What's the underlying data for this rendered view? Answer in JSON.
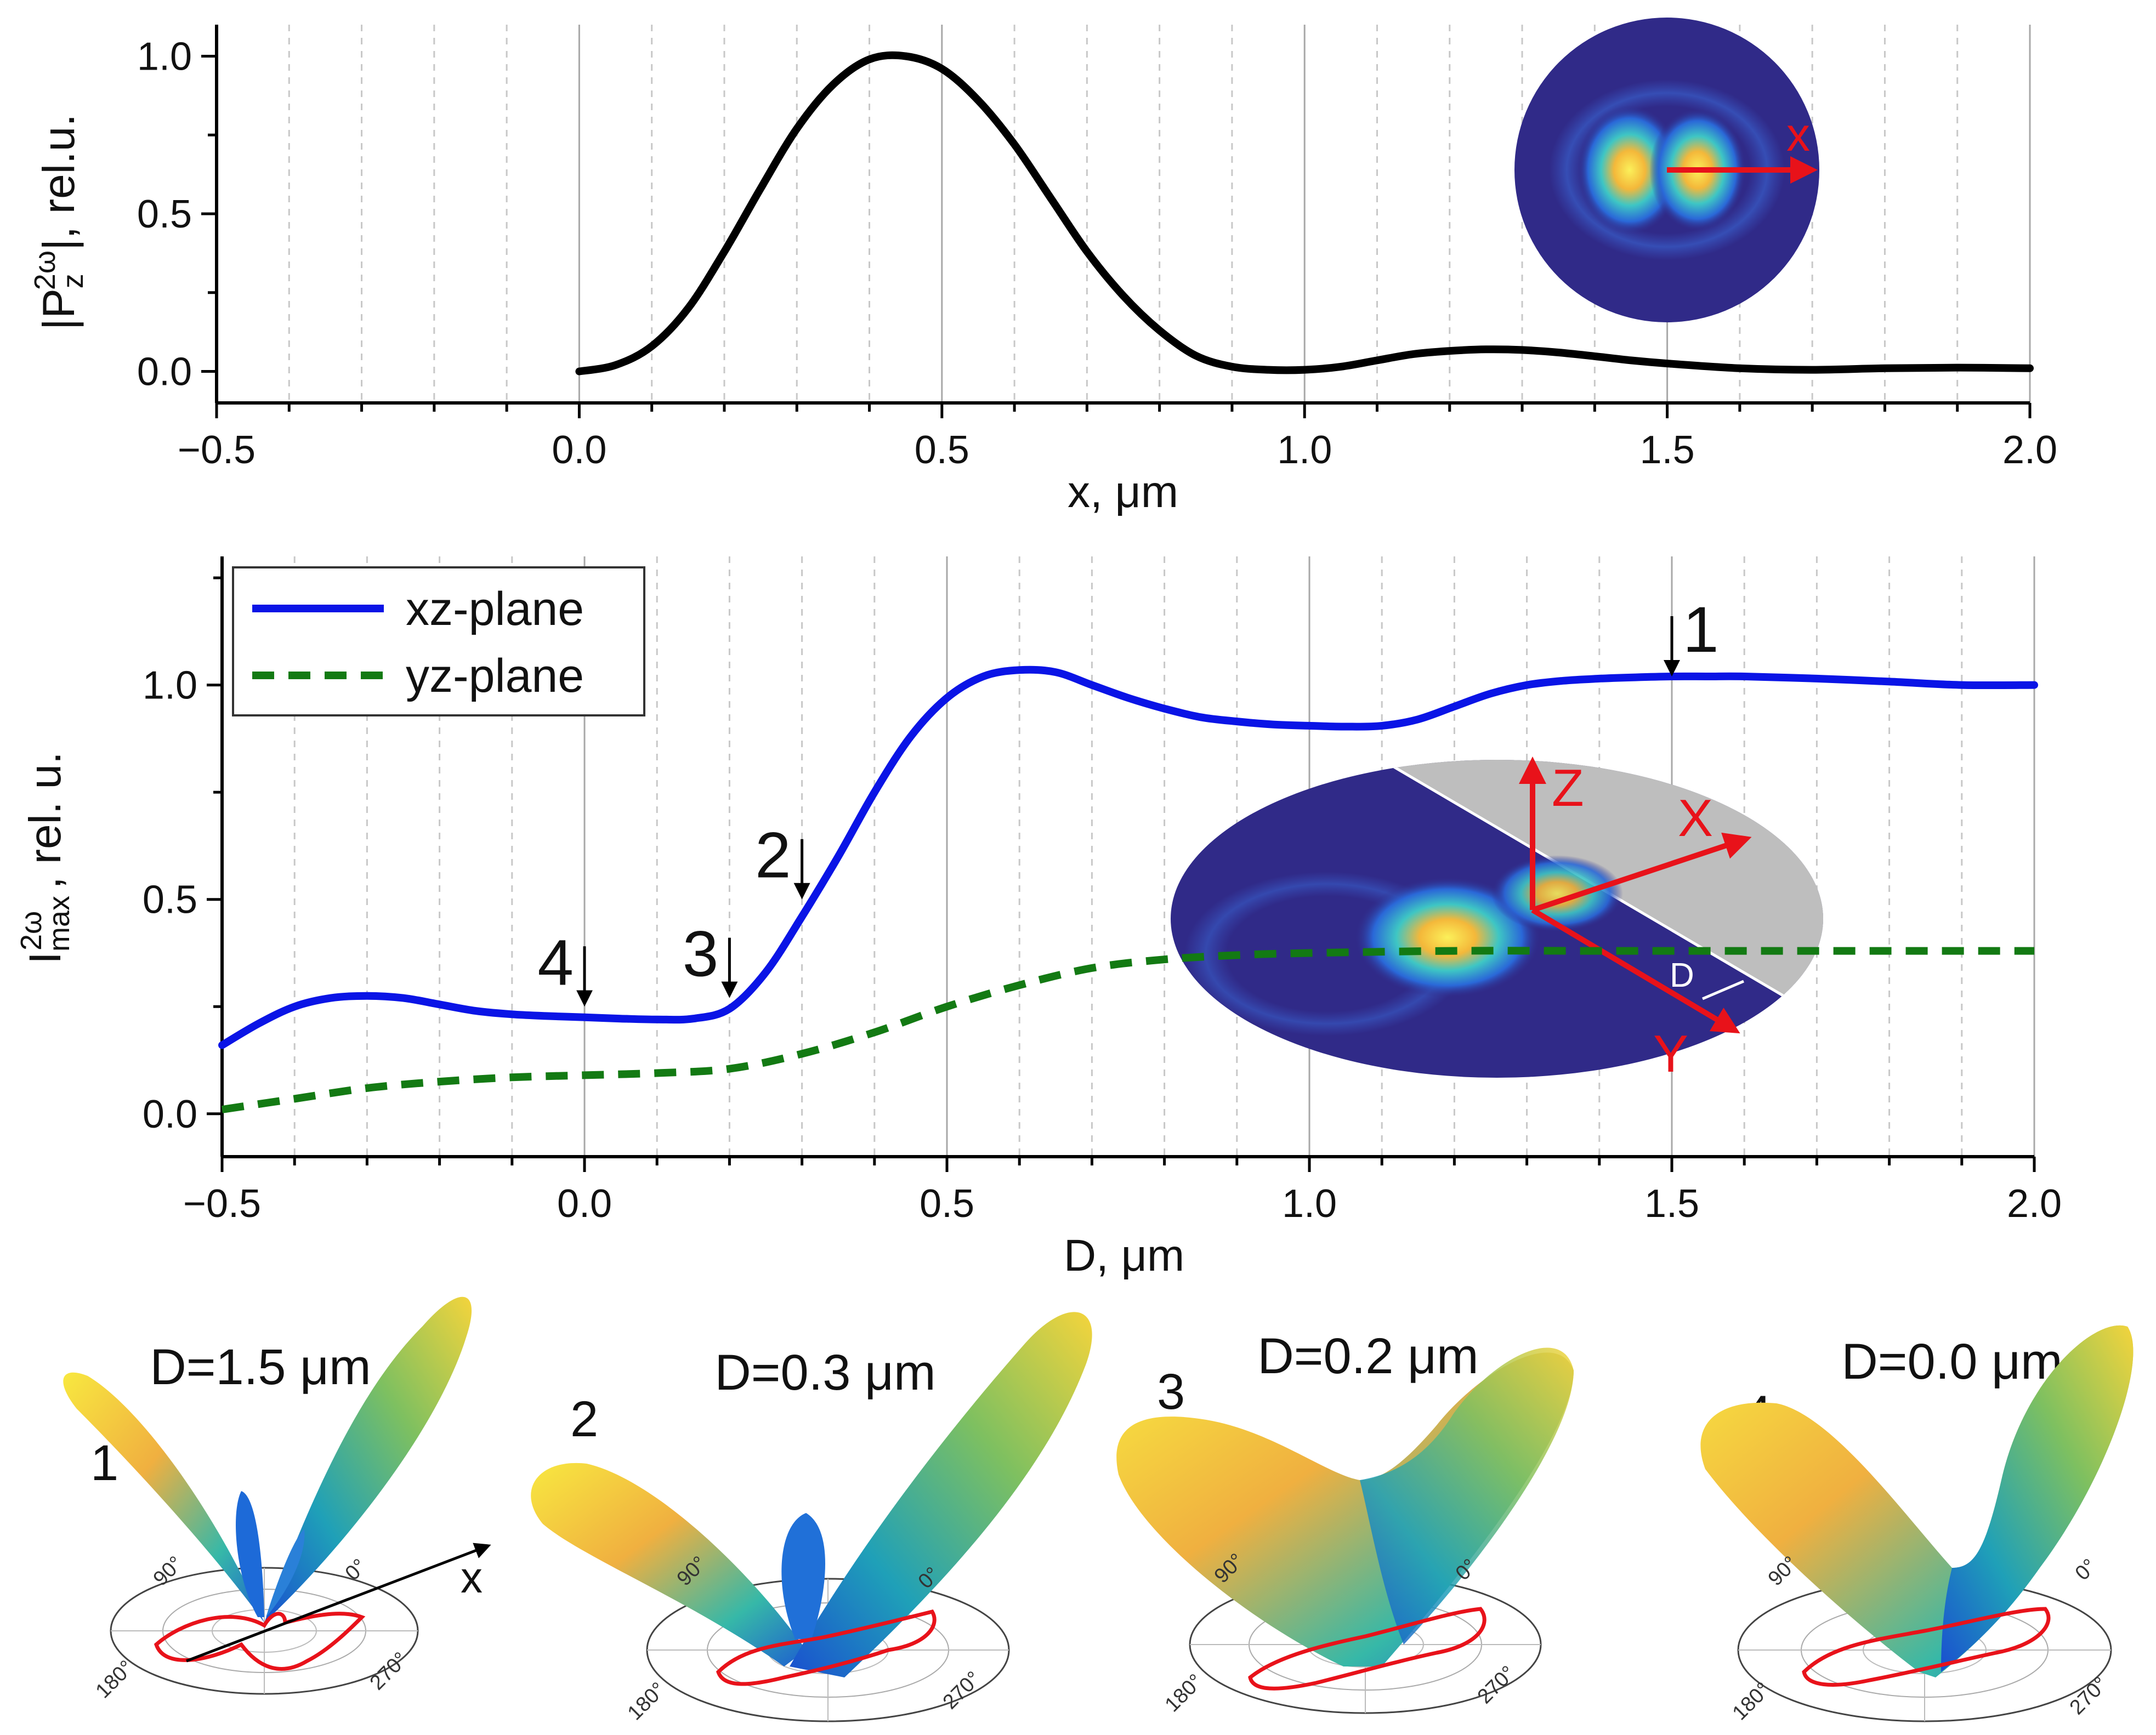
{
  "chart_data": [
    {
      "type": "line",
      "xlabel": "x, μm",
      "ylabel": "|P_z^{2ω}|, rel.u.",
      "xlim": [
        -0.5,
        2.0
      ],
      "ylim": [
        -0.1,
        1.1
      ],
      "xticks": [
        "−0.5",
        "0.0",
        "0.5",
        "1.0",
        "1.5",
        "2.0"
      ],
      "yticks": [
        "0.0",
        "0.5",
        "1.0"
      ],
      "grid": "vertical",
      "series": [
        {
          "color": "#000000",
          "x": [
            0.0,
            0.05,
            0.1,
            0.15,
            0.2,
            0.25,
            0.3,
            0.35,
            0.4,
            0.45,
            0.5,
            0.55,
            0.6,
            0.65,
            0.7,
            0.75,
            0.8,
            0.85,
            0.9,
            0.95,
            1.0,
            1.05,
            1.1,
            1.15,
            1.2,
            1.25,
            1.3,
            1.35,
            1.4,
            1.45,
            1.5,
            1.6,
            1.7,
            1.8,
            1.9,
            2.0
          ],
          "values": [
            0.0,
            0.02,
            0.08,
            0.2,
            0.38,
            0.58,
            0.77,
            0.91,
            0.99,
            1.0,
            0.96,
            0.86,
            0.72,
            0.55,
            0.38,
            0.24,
            0.13,
            0.05,
            0.015,
            0.005,
            0.005,
            0.015,
            0.035,
            0.055,
            0.065,
            0.07,
            0.068,
            0.06,
            0.048,
            0.035,
            0.025,
            0.01,
            0.005,
            0.01,
            0.012,
            0.01
          ]
        }
      ],
      "inset": {
        "axis_label": "x"
      }
    },
    {
      "type": "line",
      "xlabel": "D, μm",
      "ylabel": "I_max^{2ω}, rel. u.",
      "xlim": [
        -0.5,
        2.0
      ],
      "ylim": [
        -0.1,
        1.3
      ],
      "xticks": [
        "−0.5",
        "0.0",
        "0.5",
        "1.0",
        "1.5",
        "2.0"
      ],
      "yticks": [
        "0.0",
        "0.5",
        "1.0"
      ],
      "grid": "vertical",
      "legend_position": "top-left",
      "series": [
        {
          "name": "xz-plane",
          "color": "#0a14e6",
          "style": "solid",
          "x": [
            -0.5,
            -0.45,
            -0.4,
            -0.35,
            -0.3,
            -0.25,
            -0.2,
            -0.15,
            -0.1,
            -0.05,
            0.0,
            0.05,
            0.1,
            0.15,
            0.2,
            0.25,
            0.3,
            0.35,
            0.4,
            0.45,
            0.5,
            0.55,
            0.6,
            0.65,
            0.7,
            0.75,
            0.8,
            0.85,
            0.9,
            0.95,
            1.0,
            1.05,
            1.1,
            1.15,
            1.2,
            1.25,
            1.3,
            1.35,
            1.4,
            1.45,
            1.5,
            1.55,
            1.6,
            1.7,
            1.8,
            1.9,
            2.0
          ],
          "values": [
            0.16,
            0.21,
            0.25,
            0.27,
            0.275,
            0.27,
            0.255,
            0.24,
            0.232,
            0.228,
            0.225,
            0.222,
            0.22,
            0.222,
            0.245,
            0.33,
            0.46,
            0.6,
            0.75,
            0.88,
            0.97,
            1.02,
            1.035,
            1.03,
            1.0,
            0.97,
            0.945,
            0.925,
            0.915,
            0.908,
            0.905,
            0.903,
            0.905,
            0.92,
            0.95,
            0.98,
            1.0,
            1.01,
            1.015,
            1.018,
            1.02,
            1.02,
            1.02,
            1.015,
            1.008,
            1.0,
            1.0
          ]
        },
        {
          "name": "yz-plane",
          "color": "#137a13",
          "style": "dashed",
          "x": [
            -0.5,
            -0.4,
            -0.3,
            -0.2,
            -0.1,
            0.0,
            0.1,
            0.2,
            0.3,
            0.4,
            0.5,
            0.6,
            0.7,
            0.8,
            0.9,
            1.0,
            1.2,
            1.4,
            1.6,
            1.8,
            2.0
          ],
          "values": [
            0.01,
            0.035,
            0.06,
            0.075,
            0.085,
            0.09,
            0.095,
            0.105,
            0.14,
            0.19,
            0.25,
            0.3,
            0.34,
            0.36,
            0.37,
            0.375,
            0.38,
            0.38,
            0.38,
            0.38,
            0.38
          ]
        }
      ],
      "annotations": [
        {
          "label": "1",
          "x": 1.5,
          "y": 1.02
        },
        {
          "label": "2",
          "x": 0.3,
          "y": 0.5
        },
        {
          "label": "3",
          "x": 0.2,
          "y": 0.27
        },
        {
          "label": "4",
          "x": 0.0,
          "y": 0.25
        }
      ],
      "inset": {
        "axis_labels": [
          "Z",
          "X",
          "Y",
          "D"
        ]
      }
    }
  ],
  "panels": [
    {
      "number": "1",
      "title": "D=1.5 μm",
      "angles": [
        "90°",
        "0°",
        "180°",
        "270°"
      ],
      "axis_label": "x"
    },
    {
      "number": "2",
      "title": "D=0.3 μm",
      "angles": [
        "90°",
        "0°",
        "180°",
        "270°"
      ]
    },
    {
      "number": "3",
      "title": "D=0.2 μm",
      "angles": [
        "90°",
        "0°",
        "180°",
        "270°"
      ]
    },
    {
      "number": "4",
      "title": "D=0.0 μm",
      "angles": [
        "90°",
        "0°",
        "180°",
        "270°"
      ]
    }
  ]
}
